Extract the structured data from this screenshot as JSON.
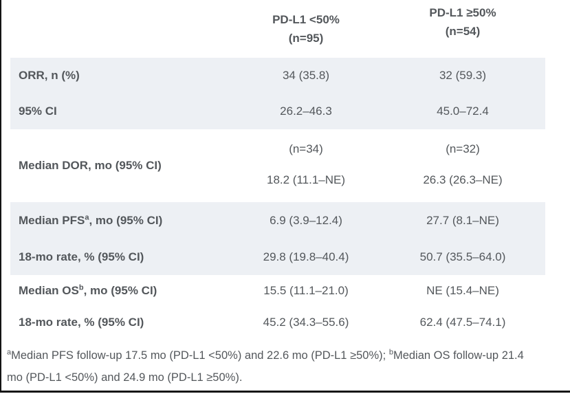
{
  "header": {
    "col1": {
      "title": "PD-L1 <50%",
      "n": "(n=95)"
    },
    "col2": {
      "title": "PD-L1 ≥50%",
      "n": "(n=54)"
    }
  },
  "rows": {
    "orr": {
      "label": "ORR, n (%)",
      "col1": "34 (35.8)",
      "col2": "32 (59.3)"
    },
    "orr_ci": {
      "label": "95% CI",
      "col1": "26.2–46.3",
      "col2": "45.0–72.4"
    },
    "dor": {
      "label": "Median DOR, mo (95% CI)",
      "col1_n": "(n=34)",
      "col1_val": "18.2 (11.1–NE)",
      "col2_n": "(n=32)",
      "col2_val": "26.3 (26.3–NE)"
    },
    "pfs": {
      "label_pre": "Median PFS",
      "label_sup": "a",
      "label_post": ", mo (95% CI)",
      "col1": "6.9 (3.9–12.4)",
      "col2": "27.7 (8.1–NE)"
    },
    "pfs_rate": {
      "label": "18-mo rate, % (95% CI)",
      "col1": "29.8 (19.8–40.4)",
      "col2": "50.7 (35.5–64.0)"
    },
    "os": {
      "label_pre": "Median OS",
      "label_sup": "b",
      "label_post": ", mo (95% CI)",
      "col1": "15.5 (11.1–21.0)",
      "col2": "NE (15.4–NE)"
    },
    "os_rate": {
      "label": "18-mo rate, % (95% CI)",
      "col1": "45.2 (34.3–55.6)",
      "col2": "62.4 (47.5–74.1)"
    }
  },
  "footnote": {
    "sup_a": "a",
    "text_a": "Median PFS follow-up 17.5 mo (PD-L1 <50%) and 22.6 mo (PD-L1 ≥50%); ",
    "sup_b": "b",
    "text_b": "Median OS follow-up 21.4 mo (PD-L1 <50%) and 24.9 mo (PD-L1 ≥50%)."
  },
  "colors": {
    "shaded_row_bg": "#edf0f4",
    "text": "#53575b",
    "border": "#141414"
  }
}
